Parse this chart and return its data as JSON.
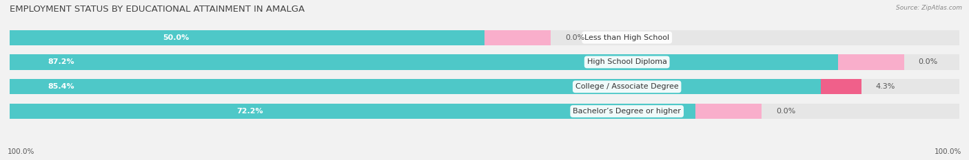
{
  "title": "EMPLOYMENT STATUS BY EDUCATIONAL ATTAINMENT IN AMALGA",
  "source": "Source: ZipAtlas.com",
  "categories": [
    "Less than High School",
    "High School Diploma",
    "College / Associate Degree",
    "Bachelor’s Degree or higher"
  ],
  "labor_force": [
    50.0,
    87.2,
    85.4,
    72.2
  ],
  "unemployed": [
    0.0,
    0.0,
    4.3,
    0.0
  ],
  "unemployed_display": [
    7.0,
    7.0,
    4.3,
    7.0
  ],
  "labor_force_color": "#4EC8C8",
  "unemployed_color_low": "#F9AECB",
  "unemployed_color_high": "#F0608A",
  "background_color": "#F2F2F2",
  "bar_bg_color": "#E6E6E6",
  "title_fontsize": 9.5,
  "label_fontsize": 8,
  "tick_fontsize": 7.5,
  "legend_fontsize": 8,
  "xlim": [
    0,
    100
  ],
  "left_100_label": "100.0%",
  "right_100_label": "100.0%"
}
